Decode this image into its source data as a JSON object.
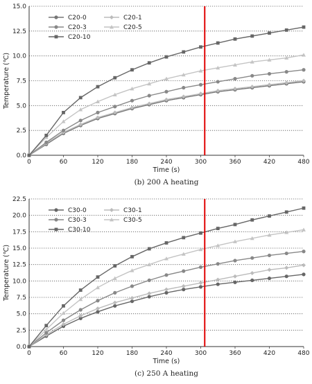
{
  "chart_data": [
    {
      "type": "line",
      "caption": "(b) 200 A heating",
      "xlabel": "Time (s)",
      "ylabel": "Temperature (℃)",
      "xlim": [
        0,
        480
      ],
      "ylim": [
        0,
        15
      ],
      "xticks": [
        0,
        60,
        120,
        180,
        240,
        300,
        360,
        420,
        480
      ],
      "yticks": [
        "0.0",
        "2.5",
        "5.0",
        "7.5",
        "10.0",
        "12.5",
        "15.0"
      ],
      "grid": "horizontal dotted",
      "legend_position": "top-left",
      "marker_line_x": 307,
      "marker_line_color": "#e00000",
      "series": [
        {
          "name": "C20-0",
          "color": "#777777",
          "marker": "circle",
          "x": [
            0,
            30,
            60,
            90,
            120,
            150,
            180,
            210,
            240,
            270,
            300,
            330,
            360,
            390,
            420,
            450,
            480
          ],
          "values": [
            0,
            1.1,
            2.2,
            3.0,
            3.7,
            4.2,
            4.7,
            5.1,
            5.5,
            5.8,
            6.1,
            6.4,
            6.6,
            6.8,
            7.0,
            7.2,
            7.4
          ]
        },
        {
          "name": "C20-1",
          "color": "#bbbbbb",
          "marker": "diamond",
          "x": [
            0,
            30,
            60,
            90,
            120,
            150,
            180,
            210,
            240,
            270,
            300,
            330,
            360,
            390,
            420,
            450,
            480
          ],
          "values": [
            0,
            1.2,
            2.3,
            3.1,
            3.8,
            4.3,
            4.8,
            5.2,
            5.6,
            5.9,
            6.2,
            6.5,
            6.7,
            6.9,
            7.1,
            7.3,
            7.5
          ]
        },
        {
          "name": "C20-3",
          "color": "#888888",
          "marker": "circle",
          "x": [
            0,
            30,
            60,
            90,
            120,
            150,
            180,
            210,
            240,
            270,
            300,
            330,
            360,
            390,
            420,
            450,
            480
          ],
          "values": [
            0,
            1.3,
            2.5,
            3.5,
            4.3,
            4.9,
            5.5,
            6.0,
            6.4,
            6.8,
            7.1,
            7.4,
            7.7,
            8.0,
            8.2,
            8.4,
            8.6
          ]
        },
        {
          "name": "C20-5",
          "color": "#c4c4c4",
          "marker": "triangle",
          "x": [
            0,
            30,
            60,
            90,
            120,
            150,
            180,
            210,
            240,
            270,
            300,
            330,
            360,
            390,
            420,
            450,
            480
          ],
          "values": [
            0,
            1.8,
            3.4,
            4.6,
            5.4,
            6.1,
            6.7,
            7.2,
            7.7,
            8.1,
            8.5,
            8.8,
            9.1,
            9.4,
            9.6,
            9.8,
            10.1
          ]
        },
        {
          "name": "C20-10",
          "color": "#666666",
          "marker": "square",
          "x": [
            0,
            30,
            60,
            90,
            120,
            150,
            180,
            210,
            240,
            270,
            300,
            330,
            360,
            390,
            420,
            450,
            480
          ],
          "values": [
            0,
            2.0,
            4.3,
            5.8,
            6.9,
            7.8,
            8.6,
            9.3,
            9.9,
            10.4,
            10.9,
            11.3,
            11.7,
            12.0,
            12.3,
            12.6,
            12.9
          ]
        }
      ]
    },
    {
      "type": "line",
      "caption": "(c) 250 A heating",
      "xlabel": "Time (s)",
      "ylabel": "Temperature (℃)",
      "xlim": [
        0,
        480
      ],
      "ylim": [
        0,
        22.5
      ],
      "xticks": [
        0,
        60,
        120,
        180,
        240,
        300,
        360,
        420,
        480
      ],
      "yticks": [
        "0.0",
        "2.5",
        "5.0",
        "7.5",
        "10.0",
        "12.5",
        "15.0",
        "17.5",
        "20.0",
        "22.5"
      ],
      "grid": "horizontal dotted",
      "legend_position": "top-left",
      "marker_line_x": 307,
      "marker_line_color": "#e00000",
      "series": [
        {
          "name": "C30-0",
          "color": "#666666",
          "marker": "circle",
          "x": [
            0,
            30,
            60,
            90,
            120,
            150,
            180,
            210,
            240,
            270,
            300,
            330,
            360,
            390,
            420,
            450,
            480
          ],
          "values": [
            0,
            1.6,
            3.1,
            4.3,
            5.3,
            6.2,
            6.9,
            7.6,
            8.2,
            8.7,
            9.1,
            9.5,
            9.8,
            10.1,
            10.4,
            10.7,
            11.0
          ]
        },
        {
          "name": "C30-1",
          "color": "#bbbbbb",
          "marker": "diamond",
          "x": [
            0,
            30,
            60,
            90,
            120,
            150,
            180,
            210,
            240,
            270,
            300,
            330,
            360,
            390,
            420,
            450,
            480
          ],
          "values": [
            0,
            1.8,
            3.4,
            4.7,
            5.8,
            6.7,
            7.4,
            8.1,
            8.7,
            9.2,
            9.7,
            10.2,
            10.7,
            11.2,
            11.7,
            12.0,
            12.4
          ]
        },
        {
          "name": "C30-3",
          "color": "#888888",
          "marker": "circle",
          "x": [
            0,
            30,
            60,
            90,
            120,
            150,
            180,
            210,
            240,
            270,
            300,
            330,
            360,
            390,
            420,
            450,
            480
          ],
          "values": [
            0,
            2.1,
            4.0,
            5.6,
            7.0,
            8.2,
            9.2,
            10.1,
            10.9,
            11.5,
            12.1,
            12.6,
            13.1,
            13.5,
            13.9,
            14.2,
            14.5
          ]
        },
        {
          "name": "C30-5",
          "color": "#c4c4c4",
          "marker": "triangle",
          "x": [
            0,
            30,
            60,
            90,
            120,
            150,
            180,
            210,
            240,
            270,
            300,
            330,
            360,
            390,
            420,
            450,
            480
          ],
          "values": [
            0,
            2.6,
            5.1,
            7.2,
            9.0,
            10.4,
            11.6,
            12.5,
            13.4,
            14.1,
            14.8,
            15.4,
            16.0,
            16.5,
            17.0,
            17.4,
            17.8
          ]
        },
        {
          "name": "C30-10",
          "color": "#666666",
          "marker": "square",
          "x": [
            0,
            30,
            60,
            90,
            120,
            150,
            180,
            210,
            240,
            270,
            300,
            330,
            360,
            390,
            420,
            450,
            480
          ],
          "values": [
            0,
            3.2,
            6.2,
            8.6,
            10.6,
            12.3,
            13.7,
            14.9,
            15.8,
            16.6,
            17.3,
            18.0,
            18.6,
            19.3,
            19.9,
            20.5,
            21.1
          ]
        }
      ]
    }
  ]
}
